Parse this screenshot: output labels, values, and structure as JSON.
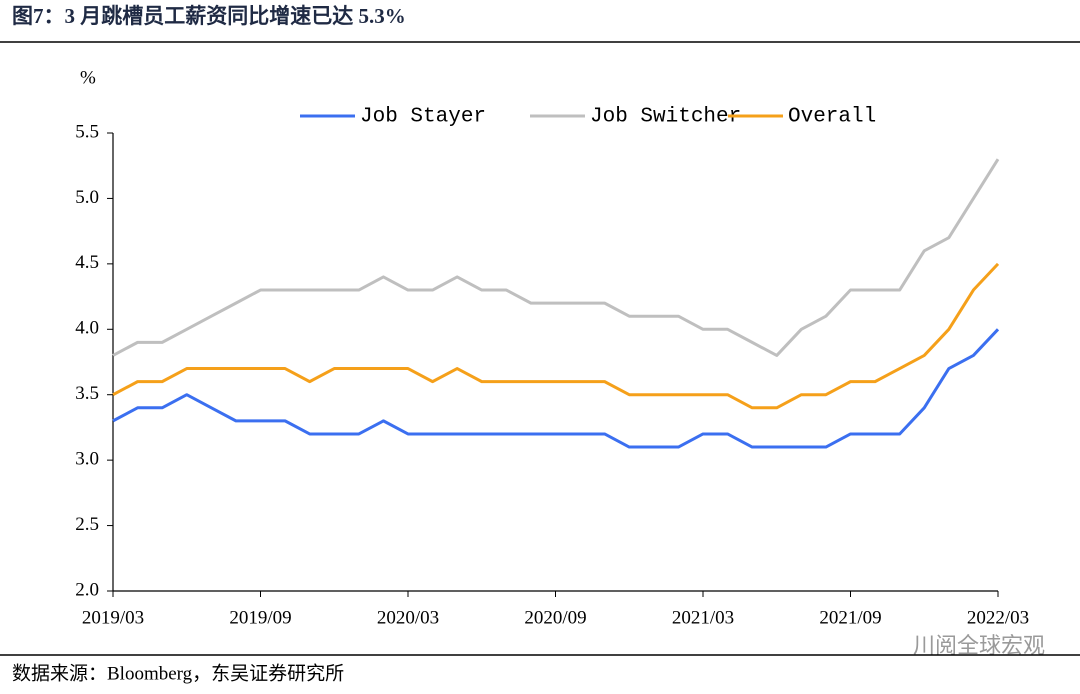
{
  "chart_data": {
    "type": "line",
    "title": "图7：3 月跳槽员工薪资同比增速已达 5.3%",
    "y_label": "%",
    "source": "数据来源：Bloomberg，东吴证券研究所",
    "watermark": "川阅全球宏观",
    "categories": [
      "2019/03",
      null,
      null,
      null,
      null,
      null,
      "2019/09",
      null,
      null,
      null,
      null,
      null,
      "2020/03",
      null,
      null,
      null,
      null,
      null,
      "2020/09",
      null,
      null,
      null,
      null,
      null,
      "2021/03",
      null,
      null,
      null,
      null,
      null,
      "2021/09",
      null,
      null,
      null,
      null,
      null,
      "2022/03"
    ],
    "series": [
      {
        "name": "Job Stayer",
        "color": "#3b6ff0",
        "values": [
          3.3,
          3.4,
          3.4,
          3.5,
          3.4,
          3.3,
          3.3,
          3.3,
          3.2,
          3.2,
          3.2,
          3.3,
          3.2,
          3.2,
          3.2,
          3.2,
          3.2,
          3.2,
          3.2,
          3.2,
          3.2,
          3.1,
          3.1,
          3.1,
          3.2,
          3.2,
          3.1,
          3.1,
          3.1,
          3.1,
          3.2,
          3.2,
          3.2,
          3.4,
          3.7,
          3.8,
          4.0
        ]
      },
      {
        "name": "Job Switcher",
        "color": "#bfbfbf",
        "values": [
          3.8,
          3.9,
          3.9,
          4.0,
          4.1,
          4.2,
          4.3,
          4.3,
          4.3,
          4.3,
          4.3,
          4.4,
          4.3,
          4.3,
          4.4,
          4.3,
          4.3,
          4.2,
          4.2,
          4.2,
          4.2,
          4.1,
          4.1,
          4.1,
          4.0,
          4.0,
          3.9,
          3.8,
          4.0,
          4.1,
          4.3,
          4.3,
          4.3,
          4.6,
          4.7,
          5.0,
          5.3
        ]
      },
      {
        "name": "Overall",
        "color": "#f5a01a",
        "values": [
          3.5,
          3.6,
          3.6,
          3.7,
          3.7,
          3.7,
          3.7,
          3.7,
          3.6,
          3.7,
          3.7,
          3.7,
          3.7,
          3.6,
          3.7,
          3.6,
          3.6,
          3.6,
          3.6,
          3.6,
          3.6,
          3.5,
          3.5,
          3.5,
          3.5,
          3.5,
          3.4,
          3.4,
          3.5,
          3.5,
          3.6,
          3.6,
          3.7,
          3.8,
          4.0,
          4.3,
          4.5
        ]
      }
    ],
    "ylim": [
      2.0,
      5.5
    ],
    "yticks": [
      {
        "value": 2.0,
        "label": "2.0"
      },
      2.5,
      {
        "value": 3.0,
        "label": "3.0"
      },
      3.5,
      {
        "value": 4.0,
        "label": "4.0"
      },
      4.5,
      {
        "value": 5.0,
        "label": "5.0"
      },
      5.5
    ],
    "legend": "top"
  }
}
